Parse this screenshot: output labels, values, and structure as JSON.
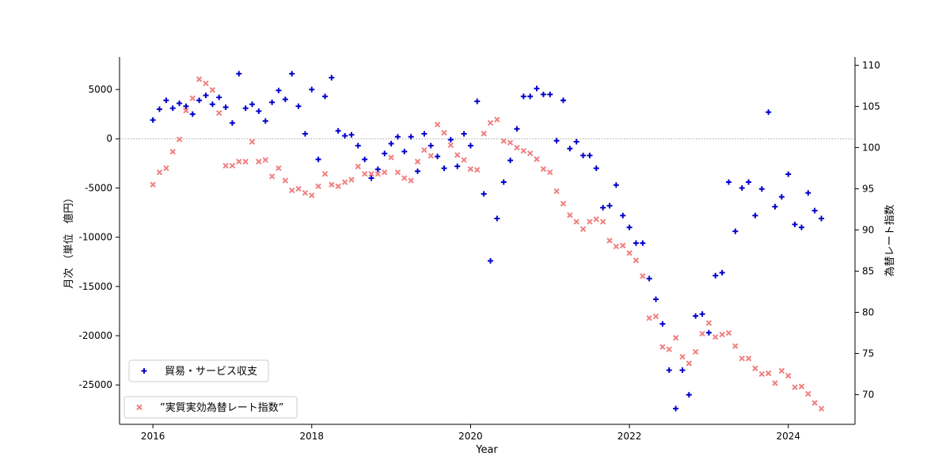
{
  "chart_data": {
    "type": "scatter",
    "xlabel": "Year",
    "ylabel_left": "月次 （単位　億円）",
    "ylabel_right": "為替レート指数",
    "xlim": [
      2015.58,
      2024.84
    ],
    "ylim_left": [
      -29000,
      8300
    ],
    "ylim_right": [
      66.4,
      111.0
    ],
    "x_ticks": [
      2016,
      2018,
      2020,
      2022,
      2024
    ],
    "y_ticks_left": [
      5000,
      0,
      -5000,
      -10000,
      -15000,
      -20000,
      -25000
    ],
    "y_ticks_right": [
      110,
      105,
      100,
      95,
      90,
      85,
      80,
      75,
      70
    ],
    "reference_line": {
      "axis": "left",
      "y": 0,
      "style": "dotted"
    },
    "grid": false,
    "series": [
      {
        "name": "貿易・サービス収支",
        "axis": "left",
        "marker": "plus",
        "color": "#0000cc",
        "x": [
          2016.0,
          2016.083,
          2016.167,
          2016.25,
          2016.333,
          2016.417,
          2016.5,
          2016.583,
          2016.667,
          2016.75,
          2016.833,
          2016.917,
          2017.0,
          2017.083,
          2017.167,
          2017.25,
          2017.333,
          2017.417,
          2017.5,
          2017.583,
          2017.667,
          2017.75,
          2017.833,
          2017.917,
          2018.0,
          2018.083,
          2018.167,
          2018.25,
          2018.333,
          2018.417,
          2018.5,
          2018.583,
          2018.667,
          2018.75,
          2018.833,
          2018.917,
          2019.0,
          2019.083,
          2019.167,
          2019.25,
          2019.333,
          2019.417,
          2019.5,
          2019.583,
          2019.667,
          2019.75,
          2019.833,
          2019.917,
          2020.0,
          2020.083,
          2020.167,
          2020.25,
          2020.333,
          2020.417,
          2020.5,
          2020.583,
          2020.667,
          2020.75,
          2020.833,
          2020.917,
          2021.0,
          2021.083,
          2021.167,
          2021.25,
          2021.333,
          2021.417,
          2021.5,
          2021.583,
          2021.667,
          2021.75,
          2021.833,
          2021.917,
          2022.0,
          2022.083,
          2022.167,
          2022.25,
          2022.333,
          2022.417,
          2022.5,
          2022.583,
          2022.667,
          2022.75,
          2022.833,
          2022.917,
          2023.0,
          2023.083,
          2023.167,
          2023.25,
          2023.333,
          2023.417,
          2023.5,
          2023.583,
          2023.667,
          2023.75,
          2023.833,
          2023.917,
          2024.0,
          2024.083,
          2024.167,
          2024.25,
          2024.333,
          2024.417
        ],
        "y": [
          1900,
          3000,
          3900,
          3100,
          3600,
          3300,
          2500,
          3900,
          4400,
          3500,
          4200,
          3200,
          1600,
          6600,
          3100,
          3500,
          2800,
          1800,
          3700,
          4900,
          4000,
          6600,
          3300,
          500,
          5000,
          -2100,
          4300,
          6200,
          800,
          300,
          400,
          -700,
          -2100,
          -4000,
          -3100,
          -1500,
          -500,
          200,
          -1300,
          200,
          -3300,
          500,
          -700,
          -1800,
          -3000,
          -100,
          -2800,
          500,
          -700,
          3800,
          -5600,
          -12400,
          -8100,
          -4400,
          -2200,
          1000,
          4300,
          4300,
          5100,
          4500,
          4500,
          -200,
          3900,
          -1000,
          -300,
          -1700,
          -1700,
          -3000,
          -7000,
          -6800,
          -4700,
          -7800,
          -9000,
          -10600,
          -10600,
          -14200,
          -16300,
          -18800,
          -23500,
          -27400,
          -23500,
          -26000,
          -18000,
          -17800,
          -19700,
          -13900,
          -13600,
          -4400,
          -9400,
          -5000,
          -4400,
          -7800,
          -5100,
          2700,
          -6900,
          -5900,
          -3600,
          -8700,
          -9000,
          -5500,
          -7300,
          -8100
        ]
      },
      {
        "name": "”実質実効為替レート指数”",
        "axis": "right",
        "marker": "x",
        "color": "#f08080",
        "x": [
          2016.0,
          2016.083,
          2016.167,
          2016.25,
          2016.333,
          2016.417,
          2016.5,
          2016.583,
          2016.667,
          2016.75,
          2016.833,
          2016.917,
          2017.0,
          2017.083,
          2017.167,
          2017.25,
          2017.333,
          2017.417,
          2017.5,
          2017.583,
          2017.667,
          2017.75,
          2017.833,
          2017.917,
          2018.0,
          2018.083,
          2018.167,
          2018.25,
          2018.333,
          2018.417,
          2018.5,
          2018.583,
          2018.667,
          2018.75,
          2018.833,
          2018.917,
          2019.0,
          2019.083,
          2019.167,
          2019.25,
          2019.333,
          2019.417,
          2019.5,
          2019.583,
          2019.667,
          2019.75,
          2019.833,
          2019.917,
          2020.0,
          2020.083,
          2020.167,
          2020.25,
          2020.333,
          2020.417,
          2020.5,
          2020.583,
          2020.667,
          2020.75,
          2020.833,
          2020.917,
          2021.0,
          2021.083,
          2021.167,
          2021.25,
          2021.333,
          2021.417,
          2021.5,
          2021.583,
          2021.667,
          2021.75,
          2021.833,
          2021.917,
          2022.0,
          2022.083,
          2022.167,
          2022.25,
          2022.333,
          2022.417,
          2022.5,
          2022.583,
          2022.667,
          2022.75,
          2022.833,
          2022.917,
          2023.0,
          2023.083,
          2023.167,
          2023.25,
          2023.333,
          2023.417,
          2023.5,
          2023.583,
          2023.667,
          2023.75,
          2023.833,
          2023.917,
          2024.0,
          2024.083,
          2024.167,
          2024.25,
          2024.333,
          2024.417
        ],
        "y": [
          95.5,
          97.0,
          97.5,
          99.5,
          101.0,
          104.5,
          106.0,
          108.3,
          107.8,
          107.0,
          104.2,
          97.8,
          97.8,
          98.3,
          98.3,
          100.7,
          98.3,
          98.5,
          96.5,
          97.5,
          96.0,
          94.8,
          95.0,
          94.5,
          94.2,
          95.3,
          96.8,
          95.5,
          95.3,
          95.8,
          96.1,
          97.7,
          96.8,
          96.8,
          96.8,
          97.0,
          98.8,
          97.0,
          96.3,
          96.0,
          98.3,
          99.7,
          99.0,
          102.8,
          101.8,
          100.3,
          99.1,
          98.5,
          97.4,
          97.3,
          101.7,
          103.0,
          103.4,
          100.8,
          100.6,
          100.0,
          99.6,
          99.3,
          98.6,
          97.4,
          97.0,
          94.7,
          93.2,
          91.8,
          91.0,
          90.1,
          91.0,
          91.3,
          91.0,
          88.7,
          88.0,
          88.1,
          87.2,
          86.3,
          84.4,
          79.3,
          79.5,
          75.8,
          75.5,
          76.9,
          74.6,
          73.8,
          75.2,
          77.4,
          78.7,
          77.0,
          77.3,
          77.5,
          75.9,
          74.4,
          74.4,
          73.2,
          72.5,
          72.6,
          71.4,
          72.9,
          72.3,
          70.9,
          71.0,
          70.1,
          69.0,
          68.3
        ]
      }
    ]
  }
}
